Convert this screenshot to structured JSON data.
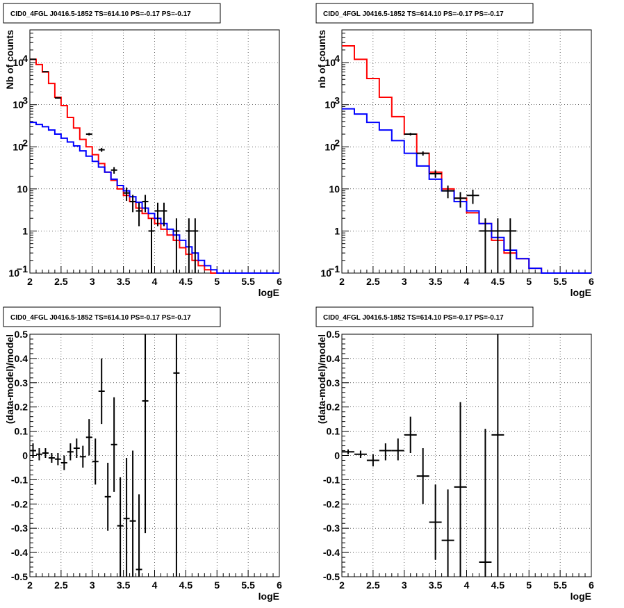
{
  "chart_data": [
    {
      "type": "line",
      "panel": "top-left",
      "title": "CID0_4FGL J0416.5-1852 TS=614.10 PS=-0.17 PS=-0.17",
      "xlabel": "logE",
      "ylabel": "Nb of counts",
      "xlim": [
        2,
        6
      ],
      "ylim": [
        0.1,
        60000
      ],
      "yscale": "log",
      "grid": true,
      "xticks": [
        "2",
        "2.5",
        "3",
        "3.5",
        "4",
        "4.5",
        "5",
        "5.5",
        "6"
      ],
      "yticks": [
        {
          "v": 0.1,
          "l": "10",
          "e": "−1"
        },
        {
          "v": 1,
          "l": "1",
          "e": ""
        },
        {
          "v": 10,
          "l": "10",
          "e": ""
        },
        {
          "v": 100,
          "l": "10",
          "e": "2"
        },
        {
          "v": 1000,
          "l": "10",
          "e": "3"
        },
        {
          "v": 10000,
          "l": "10",
          "e": "4"
        }
      ],
      "bin_edges": [
        2,
        2.1,
        2.2,
        2.3,
        2.4,
        2.5,
        2.6,
        2.7,
        2.8,
        2.9,
        3,
        3.1,
        3.2,
        3.3,
        3.4,
        3.5,
        3.6,
        3.7,
        3.8,
        3.9,
        4,
        4.1,
        4.2,
        4.3,
        4.4,
        4.5,
        4.6,
        4.7,
        4.8,
        4.9,
        5,
        5.1,
        5.2,
        5.3,
        5.4,
        5.5,
        5.6,
        5.7,
        5.8,
        5.9,
        6
      ],
      "series": [
        {
          "color": "#ff0000",
          "values": [
            12000,
            9000,
            6000,
            3200,
            1500,
            950,
            500,
            280,
            150,
            100,
            65,
            40,
            25,
            16,
            10,
            7,
            5,
            3.5,
            2.6,
            2,
            1.5,
            1.1,
            0.8,
            0.6,
            0.4,
            0.28,
            0.2,
            0.15,
            0.12,
            0.1,
            0.1,
            0.1,
            0.1,
            0.1,
            0.1,
            0.1,
            0.1,
            0.1,
            0.1,
            0.1
          ]
        },
        {
          "color": "#0000ff",
          "values": [
            380,
            340,
            300,
            250,
            200,
            160,
            130,
            105,
            80,
            60,
            45,
            33,
            25,
            17,
            12,
            9,
            6.5,
            4.8,
            3.5,
            2.6,
            2,
            1.5,
            1.1,
            0.8,
            0.6,
            0.42,
            0.3,
            0.2,
            0.15,
            0.12,
            0.1,
            0.1,
            0.1,
            0.1,
            0.1,
            0.1,
            0.1,
            0.1,
            0.1,
            0.1
          ]
        }
      ],
      "data_points": [
        {
          "x": 2.05,
          "y": 12000,
          "xerr": 0.05,
          "ylo": 11800,
          "yhi": 12200
        },
        {
          "x": 2.25,
          "y": 6100,
          "xerr": 0.05,
          "ylo": 6000,
          "yhi": 6200
        },
        {
          "x": 2.45,
          "y": 1450,
          "xerr": 0.05,
          "ylo": 1400,
          "yhi": 1500
        },
        {
          "x": 2.95,
          "y": 200,
          "xerr": 0.05,
          "ylo": 186,
          "yhi": 214
        },
        {
          "x": 3.15,
          "y": 85,
          "xerr": 0.05,
          "ylo": 76,
          "yhi": 94
        },
        {
          "x": 3.35,
          "y": 28,
          "xerr": 0.05,
          "ylo": 23,
          "yhi": 33
        },
        {
          "x": 3.55,
          "y": 8,
          "xerr": 0.05,
          "ylo": 5.2,
          "yhi": 10.8
        },
        {
          "x": 3.65,
          "y": 5,
          "xerr": 0.05,
          "ylo": 2.8,
          "yhi": 7.2
        },
        {
          "x": 3.75,
          "y": 3,
          "xerr": 0.05,
          "ylo": 1.3,
          "yhi": 4.7
        },
        {
          "x": 3.85,
          "y": 5,
          "xerr": 0.05,
          "ylo": 2.8,
          "yhi": 7.2
        },
        {
          "x": 3.95,
          "y": 1,
          "xerr": 0.05,
          "ylo": 0.1,
          "yhi": 2
        },
        {
          "x": 4.05,
          "y": 3,
          "xerr": 0.05,
          "ylo": 1.3,
          "yhi": 4.7
        },
        {
          "x": 4.15,
          "y": 3,
          "xerr": 0.05,
          "ylo": 1.3,
          "yhi": 4.7
        },
        {
          "x": 4.35,
          "y": 1,
          "xerr": 0.05,
          "ylo": 0.1,
          "yhi": 2
        },
        {
          "x": 4.55,
          "y": 1,
          "xerr": 0.05,
          "ylo": 0.1,
          "yhi": 2
        },
        {
          "x": 4.65,
          "y": 1,
          "xerr": 0.05,
          "ylo": 0.1,
          "yhi": 2
        }
      ]
    },
    {
      "type": "line",
      "panel": "top-right",
      "title": "CID0_4FGL J0416.5-1852 TS=614.10 PS=-0.17 PS=-0.17",
      "xlabel": "logE",
      "ylabel": "nb of counts",
      "xlim": [
        2,
        6
      ],
      "ylim": [
        0.1,
        60000
      ],
      "yscale": "log",
      "grid": true,
      "xticks": [
        "2",
        "2.5",
        "3",
        "3.5",
        "4",
        "4.5",
        "5",
        "5.5",
        "6"
      ],
      "yticks": [
        {
          "v": 0.1,
          "l": "10",
          "e": "−1"
        },
        {
          "v": 1,
          "l": "1",
          "e": ""
        },
        {
          "v": 10,
          "l": "10",
          "e": ""
        },
        {
          "v": 100,
          "l": "10",
          "e": "2"
        },
        {
          "v": 1000,
          "l": "10",
          "e": "3"
        },
        {
          "v": 10000,
          "l": "10",
          "e": "4"
        }
      ],
      "bin_edges": [
        2,
        2.2,
        2.4,
        2.6,
        2.8,
        3,
        3.2,
        3.4,
        3.6,
        3.8,
        4,
        4.2,
        4.4,
        4.6,
        4.8,
        5,
        5.2,
        5.4,
        5.6,
        5.8,
        6
      ],
      "series": [
        {
          "color": "#ff0000",
          "values": [
            25000,
            12000,
            4200,
            1500,
            520,
            200,
            70,
            25,
            10,
            6,
            2.7,
            1.5,
            0.6,
            0.3,
            0.22,
            0.13,
            0.1,
            0.1,
            0.1,
            0.1
          ]
        },
        {
          "color": "#0000ff",
          "values": [
            800,
            600,
            380,
            250,
            140,
            70,
            35,
            17,
            9,
            5,
            3,
            1.5,
            0.7,
            0.35,
            0.22,
            0.13,
            0.1,
            0.1,
            0.1,
            0.1
          ]
        }
      ],
      "data_points": [
        {
          "x": 3.1,
          "y": 200,
          "xerr": 0.1,
          "ylo": 186,
          "yhi": 214
        },
        {
          "x": 3.3,
          "y": 70,
          "xerr": 0.1,
          "ylo": 62,
          "yhi": 78
        },
        {
          "x": 3.5,
          "y": 23,
          "xerr": 0.1,
          "ylo": 18.5,
          "yhi": 27.5
        },
        {
          "x": 3.7,
          "y": 9,
          "xerr": 0.1,
          "ylo": 6,
          "yhi": 12
        },
        {
          "x": 3.9,
          "y": 6,
          "xerr": 0.1,
          "ylo": 3.6,
          "yhi": 8.4
        },
        {
          "x": 4.1,
          "y": 7,
          "xerr": 0.1,
          "ylo": 4.4,
          "yhi": 9.6
        },
        {
          "x": 4.3,
          "y": 1,
          "xerr": 0.1,
          "ylo": 0.1,
          "yhi": 2
        },
        {
          "x": 4.5,
          "y": 1,
          "xerr": 0.1,
          "ylo": 0.1,
          "yhi": 2
        },
        {
          "x": 4.7,
          "y": 1,
          "xerr": 0.1,
          "ylo": 0.1,
          "yhi": 2
        }
      ]
    },
    {
      "type": "scatter",
      "panel": "bottom-left",
      "title": "CID0_4FGL J0416.5-1852 TS=614.10 PS=-0.17 PS=-0.17",
      "xlabel": "logE",
      "ylabel": "(data-model)/model",
      "xlim": [
        2,
        6
      ],
      "ylim": [
        -0.5,
        0.5
      ],
      "grid": true,
      "xticks": [
        "2",
        "2.5",
        "3",
        "3.5",
        "4",
        "4.5",
        "5",
        "5.5",
        "6"
      ],
      "yticks": [
        "-0.5",
        "-0.4",
        "-0.3",
        "-0.2",
        "-0.1",
        "0",
        "0.1",
        "0.2",
        "0.3",
        "0.4",
        "0.5"
      ],
      "data_points": [
        {
          "x": 2.05,
          "y": 0.02,
          "xerr": 0.05,
          "ylo": -0.01,
          "yhi": 0.05
        },
        {
          "x": 2.15,
          "y": 0.005,
          "xerr": 0.05,
          "ylo": -0.02,
          "yhi": 0.03
        },
        {
          "x": 2.25,
          "y": 0.01,
          "xerr": 0.05,
          "ylo": -0.01,
          "yhi": 0.03
        },
        {
          "x": 2.35,
          "y": -0.01,
          "xerr": 0.05,
          "ylo": -0.03,
          "yhi": 0.01
        },
        {
          "x": 2.45,
          "y": -0.015,
          "xerr": 0.05,
          "ylo": -0.04,
          "yhi": 0.01
        },
        {
          "x": 2.55,
          "y": -0.03,
          "xerr": 0.05,
          "ylo": -0.06,
          "yhi": 0
        },
        {
          "x": 2.65,
          "y": 0.015,
          "xerr": 0.05,
          "ylo": -0.02,
          "yhi": 0.05
        },
        {
          "x": 2.75,
          "y": 0.03,
          "xerr": 0.05,
          "ylo": -0.01,
          "yhi": 0.07
        },
        {
          "x": 2.85,
          "y": -0.005,
          "xerr": 0.05,
          "ylo": -0.05,
          "yhi": 0.04
        },
        {
          "x": 2.95,
          "y": 0.075,
          "xerr": 0.05,
          "ylo": 0,
          "yhi": 0.15
        },
        {
          "x": 3.05,
          "y": -0.025,
          "xerr": 0.05,
          "ylo": -0.12,
          "yhi": 0.07
        },
        {
          "x": 3.15,
          "y": 0.265,
          "xerr": 0.05,
          "ylo": 0.13,
          "yhi": 0.4
        },
        {
          "x": 3.25,
          "y": -0.17,
          "xerr": 0.05,
          "ylo": -0.31,
          "yhi": -0.03
        },
        {
          "x": 3.35,
          "y": 0.045,
          "xerr": 0.05,
          "ylo": -0.15,
          "yhi": 0.24
        },
        {
          "x": 3.45,
          "y": -0.29,
          "xerr": 0.05,
          "ylo": -0.5,
          "yhi": -0.09
        },
        {
          "x": 3.55,
          "y": -0.26,
          "xerr": 0.05,
          "ylo": -0.5,
          "yhi": -0.01
        },
        {
          "x": 3.65,
          "y": -0.27,
          "xerr": 0.05,
          "ylo": -0.5,
          "yhi": 0.02
        },
        {
          "x": 3.75,
          "y": -0.47,
          "xerr": 0.05,
          "ylo": -0.5,
          "yhi": -0.16
        },
        {
          "x": 3.85,
          "y": 0.225,
          "xerr": 0.05,
          "ylo": -0.32,
          "yhi": 0.5
        },
        {
          "x": 4.35,
          "y": 0.34,
          "xerr": 0.05,
          "ylo": -0.5,
          "yhi": 0.5
        }
      ]
    },
    {
      "type": "scatter",
      "panel": "bottom-right",
      "title": "CID0_4FGL J0416.5-1852 TS=614.10 PS=-0.17 PS=-0.17",
      "xlabel": "logE",
      "ylabel": "(data-model)/model",
      "xlim": [
        2,
        6
      ],
      "ylim": [
        -0.5,
        0.5
      ],
      "grid": true,
      "xticks": [
        "2",
        "2.5",
        "3",
        "3.5",
        "4",
        "4.5",
        "5",
        "5.5",
        "6"
      ],
      "yticks": [
        "-0.5",
        "-0.4",
        "-0.3",
        "-0.2",
        "-0.1",
        "0",
        "0.1",
        "0.2",
        "0.3",
        "0.4",
        "0.5"
      ],
      "data_points": [
        {
          "x": 2.1,
          "y": 0.015,
          "xerr": 0.1,
          "ylo": 0.005,
          "yhi": 0.025
        },
        {
          "x": 2.3,
          "y": 0.005,
          "xerr": 0.1,
          "ylo": -0.01,
          "yhi": 0.02
        },
        {
          "x": 2.5,
          "y": -0.02,
          "xerr": 0.1,
          "ylo": -0.045,
          "yhi": 0.005
        },
        {
          "x": 2.7,
          "y": 0.02,
          "xerr": 0.1,
          "ylo": -0.02,
          "yhi": 0.05
        },
        {
          "x": 2.9,
          "y": 0.02,
          "xerr": 0.1,
          "ylo": -0.02,
          "yhi": 0.07
        },
        {
          "x": 3.1,
          "y": 0.085,
          "xerr": 0.1,
          "ylo": 0.01,
          "yhi": 0.16
        },
        {
          "x": 3.3,
          "y": -0.085,
          "xerr": 0.1,
          "ylo": -0.2,
          "yhi": 0.03
        },
        {
          "x": 3.5,
          "y": -0.275,
          "xerr": 0.1,
          "ylo": -0.43,
          "yhi": -0.12
        },
        {
          "x": 3.7,
          "y": -0.35,
          "xerr": 0.1,
          "ylo": -0.5,
          "yhi": -0.14
        },
        {
          "x": 3.9,
          "y": -0.13,
          "xerr": 0.1,
          "ylo": -0.5,
          "yhi": 0.22
        },
        {
          "x": 4.3,
          "y": -0.44,
          "xerr": 0.1,
          "ylo": -0.5,
          "yhi": 0.11
        },
        {
          "x": 4.5,
          "y": 0.085,
          "xerr": 0.1,
          "ylo": -0.5,
          "yhi": 0.5
        }
      ]
    }
  ]
}
